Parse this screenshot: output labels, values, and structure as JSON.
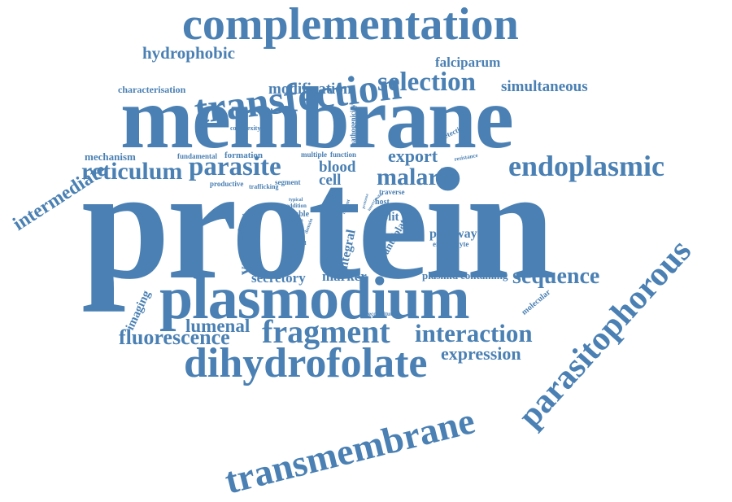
{
  "color": "#4a80b3",
  "words": [
    "protein",
    "membrane",
    "complementation",
    "plasmodium",
    "transfection",
    "dihydrofolate",
    "fragment",
    "transmembrane",
    "parasitophorous",
    "endoplasmic",
    "selection",
    "parasite",
    "malaria",
    "interaction",
    "sequence",
    "reticulum",
    "hydrophobic",
    "intermediate",
    "fluorescence",
    "expression",
    "export",
    "vacuole",
    "lumenal",
    "modification",
    "simultaneous",
    "falciparum",
    "pathway",
    "blood",
    "cell",
    "secretory",
    "marker",
    "integral",
    "imaging",
    "split",
    "plasmid",
    "containing",
    "characterisation",
    "mechanism",
    "formation",
    "fundamental",
    "antifolate",
    "molecular",
    "detection",
    "resistance",
    "erythrocyte",
    "complexity",
    "pathogenicity",
    "multiple",
    "function",
    "productive",
    "trafficking",
    "segment",
    "host",
    "soluble",
    "traverse",
    "experiment",
    "method",
    "reconstitute",
    "typical",
    "addition",
    "enzyme",
    "study",
    "stable",
    "stage",
    "domain",
    "mutant",
    "protozoa",
    "conifer",
    "insert"
  ]
}
